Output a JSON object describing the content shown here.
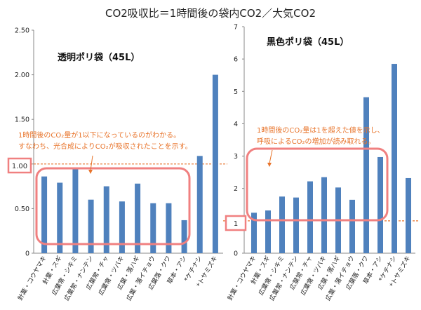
{
  "title": "CO2吸収比＝1時間後の袋内CO2／大気CO2",
  "colors": {
    "bar": "#4f81bd",
    "highlight": "#f08080",
    "refline": "#e8742b",
    "note": "#e8742b"
  },
  "chart_data": [
    {
      "type": "bar",
      "title": "透明ポリ袋（45L）",
      "categories": [
        "針葉・コウヤマキ",
        "針葉・スギ",
        "広葉常・シキミ",
        "広葉常・ナンテン",
        "広葉常・チャ",
        "広葉常・ツバキ",
        "広葉・落ハギ",
        "広葉・落イチョウ",
        "広葉落・クワ",
        "草本・アシ",
        "*ケチナシ",
        "*トサミズキ"
      ],
      "values": [
        0.86,
        0.79,
        0.96,
        0.6,
        0.75,
        0.58,
        0.78,
        0.56,
        0.56,
        0.37,
        1.09,
        2.0
      ],
      "ylim": [
        0,
        2.5
      ],
      "yticks": [
        "0",
        "0.50",
        "1.00",
        "1.50",
        "2.00",
        "2.50"
      ],
      "reference_line": 1.0,
      "callout_value": "1.00",
      "note_lines": [
        "1時間後のCO₂量が1以下になっているのがわかる。",
        "すなわち、光合成によりCO₂が吸収されたことを示す。"
      ],
      "grid": false
    },
    {
      "type": "bar",
      "title": "黒色ポリ袋（45L）",
      "categories": [
        "針葉・コウヤマキ",
        "針葉・スギ",
        "広葉常・シキミ",
        "広葉常・ナンテン",
        "広葉常・チャ",
        "広葉常・ツバキ",
        "広葉・落ハギ",
        "広葉・落イチョウ",
        "広葉落・クワ",
        "草本・アシ",
        "*ケチナシ",
        "*トサミズキ"
      ],
      "values": [
        1.25,
        1.32,
        1.75,
        1.72,
        2.22,
        2.35,
        2.03,
        1.65,
        4.82,
        2.97,
        5.85,
        2.32
      ],
      "ylim": [
        0,
        7
      ],
      "yticks": [
        "0",
        "1",
        "2",
        "3",
        "4",
        "5",
        "6",
        "7"
      ],
      "reference_line": 1.0,
      "callout_value": "1",
      "note_lines": [
        "1時間後のCO₂量は1を超えた値を示し、",
        "呼吸によるCO₂の増加が読み取れる。"
      ],
      "grid": false
    }
  ]
}
